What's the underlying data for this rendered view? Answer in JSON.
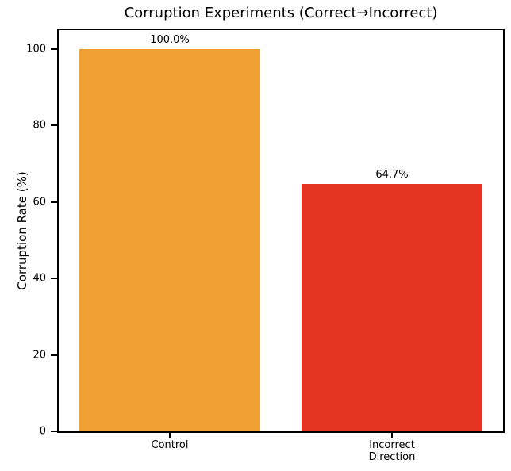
{
  "chart_data": {
    "type": "bar",
    "title": "Corruption Experiments (Correct→Incorrect)",
    "categories": [
      "Control",
      "Incorrect\nDirection"
    ],
    "values": [
      100.0,
      64.7
    ],
    "value_labels": [
      "100.0%",
      "64.7%"
    ],
    "bar_colors": [
      "#F09F33",
      "#E53322"
    ],
    "xlabel": "",
    "ylabel": "Corruption Rate (%)",
    "yticks": [
      0,
      20,
      40,
      60,
      80,
      100
    ],
    "ylim": [
      0,
      105
    ],
    "grid": false,
    "legend": "none",
    "spine_color": "#000000",
    "background_color": "#ffffff"
  }
}
